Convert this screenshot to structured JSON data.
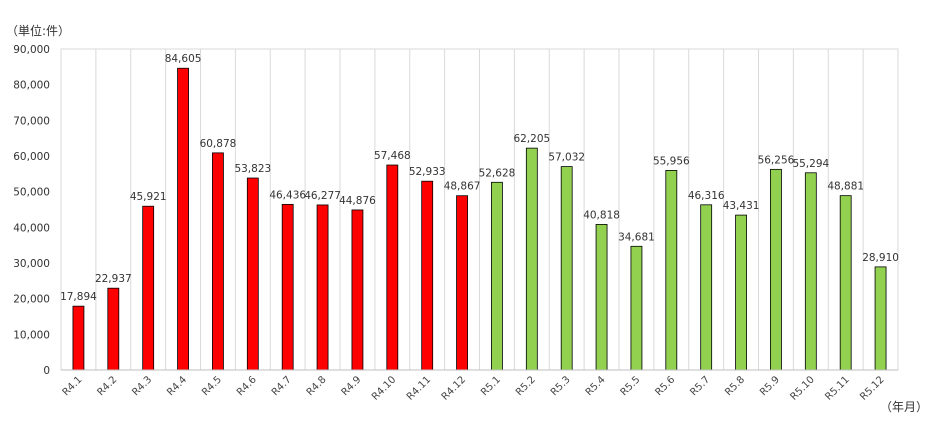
{
  "chart_data": {
    "type": "bar",
    "unit_label": "（単位:件）",
    "x_unit_label": "（年月）",
    "categories": [
      "R4.1",
      "R4.2",
      "R4.3",
      "R4.4",
      "R4.5",
      "R4.6",
      "R4.7",
      "R4.8",
      "R4.9",
      "R4.10",
      "R4.11",
      "R4.12",
      "R5.1",
      "R5.2",
      "R5.3",
      "R5.4",
      "R5.5",
      "R5.6",
      "R5.7",
      "R5.8",
      "R5.9",
      "R5.10",
      "R5.11",
      "R5.12"
    ],
    "values": [
      17894,
      22937,
      45921,
      84605,
      60878,
      53823,
      46436,
      46277,
      44876,
      57468,
      52933,
      48867,
      52628,
      62205,
      57032,
      40818,
      34681,
      55956,
      46316,
      43431,
      56256,
      55294,
      48881,
      28910
    ],
    "value_labels": [
      "17,894",
      "22,937",
      "45,921",
      "84,605",
      "60,878",
      "53,823",
      "46,436",
      "46,277",
      "44,876",
      "57,468",
      "52,933",
      "48,867",
      "52,628",
      "62,205",
      "57,032",
      "40,818",
      "34,681",
      "55,956",
      "46,316",
      "43,431",
      "56,256",
      "55,294",
      "48,881",
      "28,910"
    ],
    "yticks": [
      "0",
      "10,000",
      "20,000",
      "30,000",
      "40,000",
      "50,000",
      "60,000",
      "70,000",
      "80,000",
      "90,000"
    ],
    "ylim": [
      0,
      90000
    ],
    "grid": "vertical",
    "colors": {
      "R4": "#ff0000",
      "R5": "#92d050",
      "outline": "#000000",
      "grid": "#d9d9d9"
    }
  }
}
